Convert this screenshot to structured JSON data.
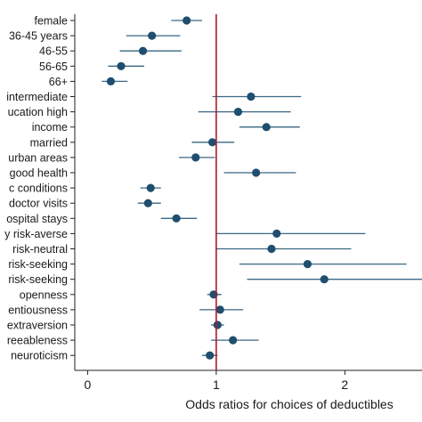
{
  "chart_data": {
    "type": "scatter",
    "subtype": "forest-plot",
    "title": "",
    "xlabel": "Odds ratios for choices of deductibles",
    "ylabel": "",
    "xlim": [
      -0.1,
      2.6
    ],
    "xticks": [
      0,
      1,
      2
    ],
    "reference_line": {
      "x": 1,
      "color": "#b2182b"
    },
    "marker_color": "#1f4e6e",
    "ci_color": "#3a6783",
    "grid": false,
    "rows": [
      {
        "label": "female",
        "estimate": 0.77,
        "lower": 0.65,
        "upper": 0.89
      },
      {
        "label": "36-45 years",
        "estimate": 0.5,
        "lower": 0.3,
        "upper": 0.72
      },
      {
        "label": "46-55",
        "estimate": 0.43,
        "lower": 0.25,
        "upper": 0.73
      },
      {
        "label": "56-65",
        "estimate": 0.26,
        "lower": 0.16,
        "upper": 0.44
      },
      {
        "label": "66+",
        "estimate": 0.18,
        "lower": 0.11,
        "upper": 0.31
      },
      {
        "label": "intermediate",
        "estimate": 1.27,
        "lower": 0.97,
        "upper": 1.66
      },
      {
        "label": "ucation high",
        "estimate": 1.17,
        "lower": 0.86,
        "upper": 1.58
      },
      {
        "label": "income",
        "estimate": 1.39,
        "lower": 1.18,
        "upper": 1.65
      },
      {
        "label": "married",
        "estimate": 0.97,
        "lower": 0.81,
        "upper": 1.14
      },
      {
        "label": "urban areas",
        "estimate": 0.84,
        "lower": 0.71,
        "upper": 0.99
      },
      {
        "label": "good health",
        "estimate": 1.31,
        "lower": 1.06,
        "upper": 1.62
      },
      {
        "label": "c conditions",
        "estimate": 0.49,
        "lower": 0.41,
        "upper": 0.57
      },
      {
        "label": "doctor visits",
        "estimate": 0.47,
        "lower": 0.39,
        "upper": 0.57
      },
      {
        "label": "ospital stays",
        "estimate": 0.69,
        "lower": 0.57,
        "upper": 0.85
      },
      {
        "label": "y risk-averse",
        "estimate": 1.47,
        "lower": 1.0,
        "upper": 2.16
      },
      {
        "label": "risk-neutral",
        "estimate": 1.43,
        "lower": 1.0,
        "upper": 2.05
      },
      {
        "label": "risk-seeking",
        "estimate": 1.71,
        "lower": 1.18,
        "upper": 2.48
      },
      {
        "label": "risk-seeking",
        "estimate": 1.84,
        "lower": 1.24,
        "upper": 2.72
      },
      {
        "label": "openness",
        "estimate": 0.98,
        "lower": 0.93,
        "upper": 1.04
      },
      {
        "label": "entiousness",
        "estimate": 1.03,
        "lower": 0.87,
        "upper": 1.21
      },
      {
        "label": "extraversion",
        "estimate": 1.01,
        "lower": 0.96,
        "upper": 1.06
      },
      {
        "label": "reeableness",
        "estimate": 1.13,
        "lower": 0.96,
        "upper": 1.33
      },
      {
        "label": "neuroticism",
        "estimate": 0.95,
        "lower": 0.89,
        "upper": 1.01
      }
    ]
  }
}
